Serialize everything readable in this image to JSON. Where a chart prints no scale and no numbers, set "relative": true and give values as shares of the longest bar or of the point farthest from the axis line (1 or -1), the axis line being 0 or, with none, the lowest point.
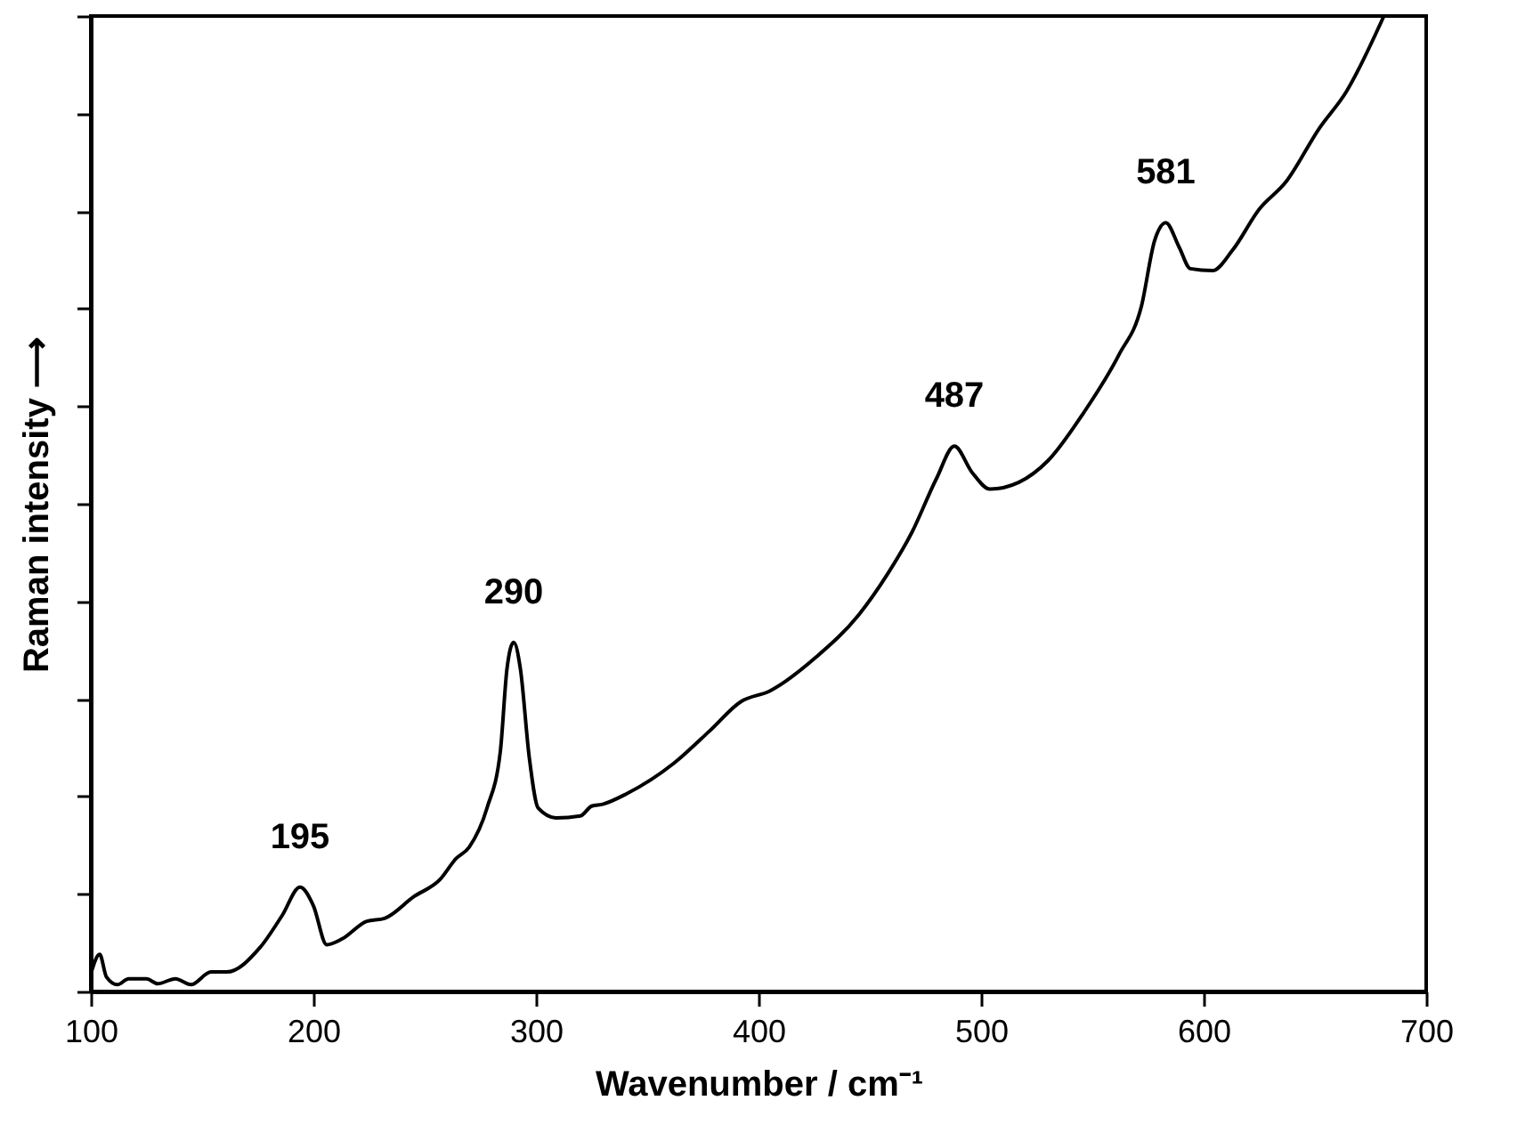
{
  "chart_data": {
    "type": "line",
    "relative": true,
    "xlabel": "Wavenumber / cm⁻¹",
    "ylabel": "Raman intensity ⟶",
    "xlim": [
      100,
      700
    ],
    "xticks": [
      100,
      200,
      300,
      400,
      500,
      600,
      700
    ],
    "grid": false,
    "marker": "none",
    "line_style": "solid",
    "x": [
      100,
      104,
      107,
      112,
      117,
      125,
      130,
      138,
      145,
      154,
      161,
      176,
      186,
      194,
      200,
      206,
      213,
      224,
      232,
      245,
      257,
      264,
      270,
      278,
      284,
      287,
      290,
      293,
      297,
      301,
      309,
      320,
      325,
      330,
      341,
      362,
      378,
      392,
      405,
      426,
      445,
      458,
      469,
      480,
      488,
      496,
      504,
      517,
      530,
      546,
      562,
      572,
      578,
      583,
      589,
      594,
      604,
      613,
      625,
      637,
      652,
      664,
      681
    ],
    "series": [
      {
        "color": "#000000",
        "values": [
          0.018,
          0.038,
          0.015,
          0.007,
          0.013,
          0.013,
          0.008,
          0.013,
          0.007,
          0.02,
          0.02,
          0.045,
          0.078,
          0.107,
          0.088,
          0.048,
          0.054,
          0.072,
          0.075,
          0.097,
          0.115,
          0.136,
          0.148,
          0.188,
          0.246,
          0.331,
          0.358,
          0.331,
          0.24,
          0.188,
          0.178,
          0.18,
          0.19,
          0.192,
          0.203,
          0.234,
          0.267,
          0.297,
          0.308,
          0.343,
          0.386,
          0.428,
          0.471,
          0.526,
          0.559,
          0.532,
          0.515,
          0.522,
          0.544,
          0.593,
          0.653,
          0.702,
          0.77,
          0.788,
          0.763,
          0.741,
          0.739,
          0.76,
          0.802,
          0.83,
          0.885,
          0.922,
          1.0
        ]
      }
    ],
    "annotations": [
      {
        "text": "195",
        "x": 194,
        "y": 0.107
      },
      {
        "text": "290",
        "x": 290,
        "y": 0.358
      },
      {
        "text": "487",
        "x": 488,
        "y": 0.559
      },
      {
        "text": "581",
        "x": 583,
        "y": 0.788
      }
    ]
  }
}
